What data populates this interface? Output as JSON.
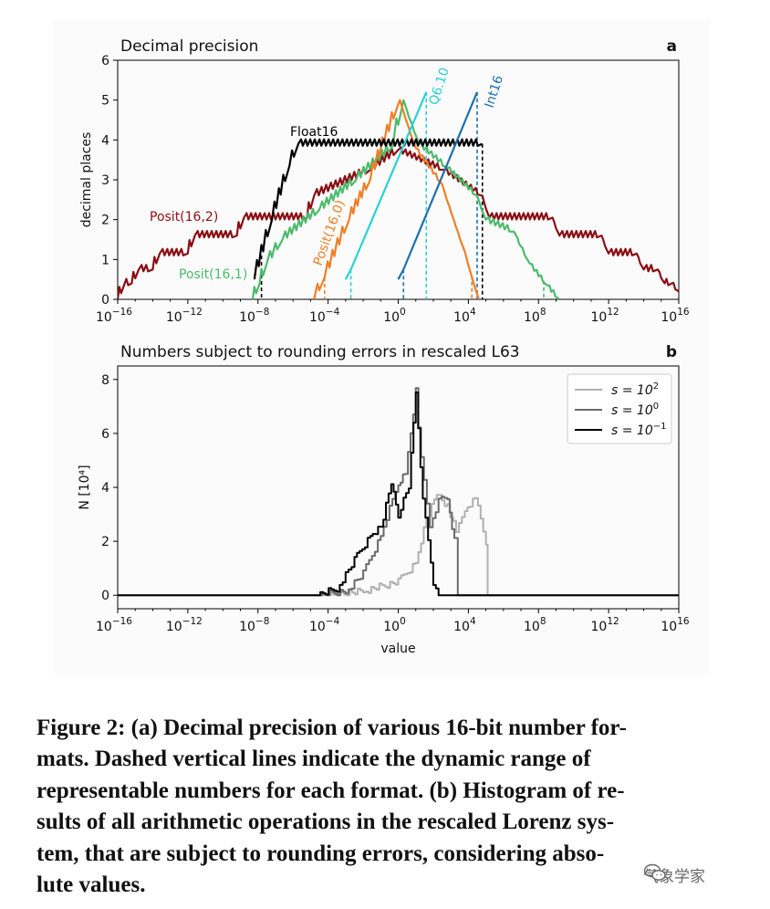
{
  "chart_data": [
    {
      "type": "line",
      "panel_letter": "a",
      "title": "Decimal precision",
      "ylabel": "decimal places",
      "xlabel": "",
      "xscale": "log",
      "xlim": [
        1e-16,
        1e+16
      ],
      "ylim": [
        0,
        6
      ],
      "yticks": [
        "0",
        "1",
        "2",
        "3",
        "4",
        "5",
        "6"
      ],
      "xtick_exponents": [
        "-16",
        "-12",
        "-8",
        "-4",
        "0",
        "4",
        "8",
        "12",
        "16"
      ],
      "xtick_base": "10",
      "grid": false,
      "series": [
        {
          "name": "Posit(16,2)",
          "color": "#8b0f15",
          "points": [
            [
              -16,
              0
            ],
            [
              -15.6,
              0.4
            ],
            [
              -15.2,
              0.4
            ],
            [
              -14.8,
              0.75
            ],
            [
              -14.0,
              0.75
            ],
            [
              -13.6,
              1.15
            ],
            [
              -12.0,
              1.15
            ],
            [
              -11.6,
              1.6
            ],
            [
              -9.2,
              1.6
            ],
            [
              -8.8,
              2.05
            ],
            [
              -5.2,
              2.05
            ],
            [
              -4.8,
              2.6
            ],
            [
              -1.6,
              3.25
            ],
            [
              0,
              3.75
            ],
            [
              2.6,
              3.25
            ],
            [
              4.8,
              2.6
            ],
            [
              5.2,
              2.05
            ],
            [
              8.8,
              2.05
            ],
            [
              9.2,
              1.6
            ],
            [
              11.6,
              1.6
            ],
            [
              12.0,
              1.15
            ],
            [
              13.6,
              1.15
            ],
            [
              14.0,
              0.75
            ],
            [
              14.8,
              0.75
            ],
            [
              15.2,
              0.4
            ],
            [
              15.6,
              0.4
            ],
            [
              16,
              0.2
            ]
          ],
          "teeth": true
        },
        {
          "name": "Posit(16,1)",
          "color": "#4cbb6c",
          "points": [
            [
              -8.3,
              0
            ],
            [
              -7.9,
              0.4
            ],
            [
              -7.5,
              0.9
            ],
            [
              -6.6,
              1.5
            ],
            [
              -4.5,
              2.25
            ],
            [
              -2.4,
              3.0
            ],
            [
              -0.3,
              3.85
            ],
            [
              0.3,
              5.0
            ],
            [
              1.2,
              3.9
            ],
            [
              2.8,
              3.3
            ],
            [
              4.5,
              2.6
            ],
            [
              5.0,
              2.0
            ],
            [
              6.6,
              1.7
            ],
            [
              7.5,
              0.9
            ],
            [
              8.5,
              0.35
            ],
            [
              9.2,
              0
            ]
          ],
          "teeth": true
        },
        {
          "name": "Posit(16,0)",
          "color": "#f07f26",
          "points": [
            [
              -4.8,
              0
            ],
            [
              -4.2,
              0.55
            ],
            [
              -2.8,
              2.0
            ],
            [
              -1.6,
              3.0
            ],
            [
              0,
              4.9
            ],
            [
              0.1,
              5.0
            ],
            [
              1.0,
              3.8
            ],
            [
              2.5,
              2.9
            ],
            [
              3.8,
              1.2
            ],
            [
              4.6,
              0
            ]
          ],
          "teeth": true
        },
        {
          "name": "Float16",
          "color": "#000000",
          "points": [
            [
              -8.2,
              0.5
            ],
            [
              -7.2,
              2.0
            ],
            [
              -6.2,
              3.35
            ],
            [
              -5.7,
              3.9
            ],
            [
              4.8,
              3.9
            ]
          ],
          "teeth": true
        },
        {
          "name": "Q6.10",
          "color": "#2bd0d6",
          "points": [
            [
              -3.0,
              0.5
            ],
            [
              -2.7,
              0.75
            ],
            [
              1.6,
              5.2
            ]
          ],
          "teeth": false
        },
        {
          "name": "Int16",
          "color": "#1e6fae",
          "points": [
            [
              0,
              0.5
            ],
            [
              0.3,
              0.75
            ],
            [
              4.5,
              5.2
            ]
          ],
          "teeth": false
        }
      ],
      "dashed_range_lines": [
        {
          "series": "Float16",
          "x_exp": [
            -7.8,
            4.8
          ],
          "color": "#000000"
        },
        {
          "series": "Q6.10",
          "x_exp": [
            -2.7,
            1.6
          ],
          "color": "#2bd0d6"
        },
        {
          "series": "Int16",
          "x_exp": [
            0.3,
            4.5
          ],
          "color": "#1e6fae"
        },
        {
          "series": "Posit(16,0)",
          "x_exp": [
            -4.2,
            4.2
          ],
          "color": "#f07f26"
        },
        {
          "series": "Posit(16,1)",
          "x_exp": [
            -8.3,
            8.3
          ],
          "color": "#4cbb6c"
        }
      ],
      "annotations": [
        "Float16",
        "Posit(16,2)",
        "Posit(16,1)",
        "Posit(16,0)",
        "Q6.10",
        "Int16"
      ]
    },
    {
      "type": "line",
      "subtype": "step-histogram",
      "panel_letter": "b",
      "title": "Numbers subject to rounding errors in rescaled L63",
      "ylabel": "N [10⁴]",
      "xlabel": "value",
      "xscale": "log",
      "xlim": [
        1e-16,
        1e+16
      ],
      "ylim": [
        -0.5,
        8.5
      ],
      "yticks": [
        "0",
        "2",
        "4",
        "6",
        "8"
      ],
      "xtick_exponents": [
        "-16",
        "-12",
        "-8",
        "-4",
        "0",
        "4",
        "8",
        "12",
        "16"
      ],
      "xtick_base": "10",
      "legend_position": "top-right",
      "legend": [
        {
          "label": "s = 10",
          "exp": "2",
          "color": "#b0b0b0"
        },
        {
          "label": "s = 10",
          "exp": "0",
          "color": "#6b6b6b"
        },
        {
          "label": "s = 10",
          "exp": "−1",
          "color": "#000000"
        }
      ],
      "series": [
        {
          "name": "s = 10^2",
          "color": "#b0b0b0",
          "points": [
            [
              -16,
              0
            ],
            [
              -4,
              0
            ],
            [
              -2,
              0.15
            ],
            [
              0,
              0.5
            ],
            [
              1.0,
              1.2
            ],
            [
              1.6,
              2.8
            ],
            [
              2.2,
              3.8
            ],
            [
              2.8,
              3.3
            ],
            [
              3.3,
              2.3
            ],
            [
              3.8,
              3.2
            ],
            [
              4.4,
              3.6
            ],
            [
              5.0,
              2.0
            ],
            [
              5.1,
              0
            ],
            [
              16,
              0
            ]
          ]
        },
        {
          "name": "s = 10^0",
          "color": "#6b6b6b",
          "points": [
            [
              -16,
              0
            ],
            [
              -4.5,
              0
            ],
            [
              -3,
              0.15
            ],
            [
              -2,
              0.8
            ],
            [
              -1,
              2.2
            ],
            [
              0,
              4.2
            ],
            [
              0.4,
              4.5
            ],
            [
              1.0,
              7.6
            ],
            [
              1.3,
              5.0
            ],
            [
              1.8,
              2.6
            ],
            [
              2.3,
              3.5
            ],
            [
              2.8,
              3.6
            ],
            [
              3.2,
              2.0
            ],
            [
              3.4,
              0
            ],
            [
              16,
              0
            ]
          ]
        },
        {
          "name": "s = 10^-1",
          "color": "#000000",
          "points": [
            [
              -16,
              0
            ],
            [
              -4.6,
              0
            ],
            [
              -3.5,
              0.25
            ],
            [
              -2.5,
              1.3
            ],
            [
              -1.6,
              2.2
            ],
            [
              -1.0,
              2.5
            ],
            [
              -0.4,
              4.2
            ],
            [
              0,
              3.0
            ],
            [
              0.6,
              4.0
            ],
            [
              1.0,
              7.6
            ],
            [
              1.4,
              3.5
            ],
            [
              2.0,
              0.5
            ],
            [
              2.3,
              0
            ],
            [
              16,
              0
            ]
          ]
        }
      ]
    }
  ],
  "caption": {
    "lines": [
      "Figure 2: (a) Decimal precision of various 16-bit number for-",
      "mats. Dashed vertical lines indicate the dynamic range of",
      "representable numbers for each format. (b) Histogram of re-",
      "sults of all arithmetic operations in the rescaled Lorenz sys-",
      "tem, that are subject to rounding errors, considering abso-",
      "lute values."
    ]
  },
  "watermark": {
    "text": "气象学家",
    "icon": "wechat-icon"
  }
}
